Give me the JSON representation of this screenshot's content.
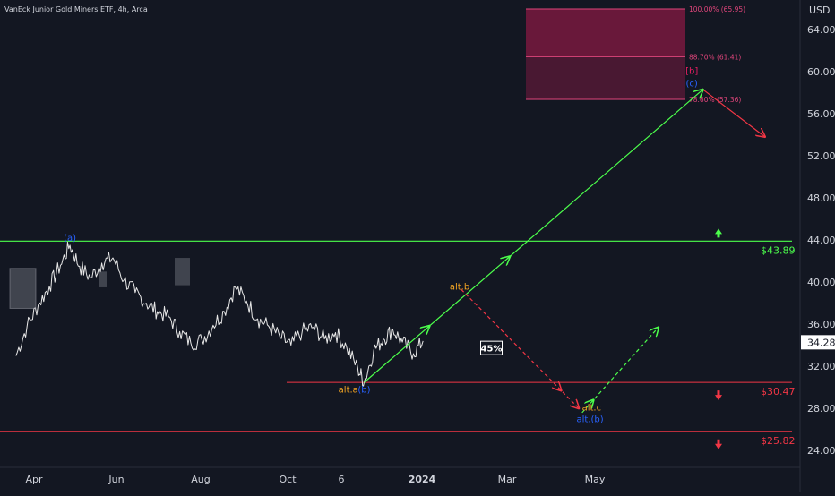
{
  "header": {
    "ticker_line": "VanEck Junior Gold Miners ETF, 4h, Arca",
    "currency": "USD"
  },
  "chart_data": {
    "type": "line",
    "title": "VanEck Junior Gold Miners ETF, 4h, Arca",
    "xlabel": "",
    "ylabel": "USD",
    "ylim": [
      22.4,
      66.8
    ],
    "y_ticks": [
      "24.00",
      "28.00",
      "32.00",
      "36.00",
      "40.00",
      "44.00",
      "48.00",
      "52.00",
      "56.00",
      "60.00",
      "64.00"
    ],
    "x_ticks": [
      "Apr",
      "Jun",
      "Aug",
      "Oct",
      "6",
      "2024",
      "Mar",
      "May"
    ],
    "current_price": "34.28",
    "series": [
      {
        "x": [
          "2023-03-01",
          "2023-03-08",
          "2023-03-15",
          "2023-03-22",
          "2023-03-29",
          "2023-04-04",
          "2023-04-10",
          "2023-04-17",
          "2023-04-24",
          "2023-05-01",
          "2023-05-08",
          "2023-05-15",
          "2023-05-22",
          "2023-05-29",
          "2023-06-05",
          "2023-06-12",
          "2023-06-19",
          "2023-06-26",
          "2023-07-03",
          "2023-07-10",
          "2023-07-17",
          "2023-07-24",
          "2023-07-31",
          "2023-08-07",
          "2023-08-14",
          "2023-08-21",
          "2023-08-28",
          "2023-09-04",
          "2023-09-11",
          "2023-09-18",
          "2023-09-25",
          "2023-10-02",
          "2023-10-06",
          "2023-10-12",
          "2023-10-18",
          "2023-10-24",
          "2023-10-30",
          "2023-11-06",
          "2023-11-12"
        ],
        "values": [
          33.0,
          35.8,
          37.8,
          39.6,
          41.6,
          43.5,
          41.5,
          40.4,
          41.8,
          42.3,
          40.2,
          39.0,
          38.0,
          37.2,
          36.7,
          35.3,
          34.2,
          34.5,
          35.9,
          37.2,
          39.5,
          38.2,
          36.5,
          35.8,
          34.8,
          34.0,
          35.3,
          35.7,
          34.6,
          35.2,
          33.8,
          31.8,
          30.5,
          33.5,
          34.6,
          35.5,
          34.3,
          33.2,
          34.4
        ]
      }
    ],
    "horizontal_levels": [
      {
        "value": 43.89,
        "label": "$43.89",
        "color": "#4cff4c"
      },
      {
        "value": 30.47,
        "label": "$30.47",
        "color": "#f23645"
      },
      {
        "value": 25.82,
        "label": "$25.82",
        "color": "#f23645"
      }
    ],
    "target_zone": {
      "low": 57.36,
      "high": 65.95,
      "levels": [
        {
          "value": 65.95,
          "label": "100.00% (65.95)"
        },
        {
          "value": 61.41,
          "label": "88.70% (61.41)"
        },
        {
          "value": 57.36,
          "label": "78.60% (57.36)"
        }
      ],
      "color": "#b0194f"
    },
    "wave_labels": [
      {
        "text": "(a)",
        "x": "2023-04-04",
        "y": 43.9,
        "color": "#2962ff"
      },
      {
        "text": "alt.a",
        "x": "2023-09-26",
        "y": 29.5,
        "color": "#f5a623"
      },
      {
        "text": "(b)",
        "x": "2023-10-06",
        "y": 29.5,
        "color": "#2962ff"
      },
      {
        "text": "alt.b",
        "x": "2023-12-05",
        "y": 39.3,
        "color": "#f5a623"
      },
      {
        "text": "alt.c",
        "x": "2024-02-26",
        "y": 27.8,
        "color": "#f5a623"
      },
      {
        "text": "alt.(b)",
        "x": "2024-02-25",
        "y": 26.7,
        "color": "#2962ff"
      },
      {
        "text": "[b]",
        "x": "2024-04-29",
        "y": 59.8,
        "color": "#e91e63"
      },
      {
        "text": "(c)",
        "x": "2024-04-29",
        "y": 58.6,
        "color": "#2962ff"
      }
    ],
    "probability_badge": {
      "text": "45%",
      "x": "2023-12-25",
      "y": 33.7
    },
    "projections": [
      {
        "points": [
          [
            "2023-10-06",
            30.47
          ],
          [
            "2024-05-06",
            58.3
          ]
        ],
        "color": "#4cff4c",
        "style": "solid"
      },
      {
        "points": [
          [
            "2023-12-06",
            39.3
          ],
          [
            "2024-02-18",
            28.0
          ]
        ],
        "color": "#f23645",
        "style": "dashed"
      },
      {
        "points": [
          [
            "2024-02-20",
            27.6
          ],
          [
            "2024-04-08",
            35.7
          ]
        ],
        "color": "#4cff4c",
        "style": "dashed"
      },
      {
        "points": [
          [
            "2024-05-06",
            58.3
          ],
          [
            "2024-06-14",
            53.8
          ]
        ],
        "color": "#f23645",
        "style": "solid"
      }
    ],
    "grid": false
  }
}
